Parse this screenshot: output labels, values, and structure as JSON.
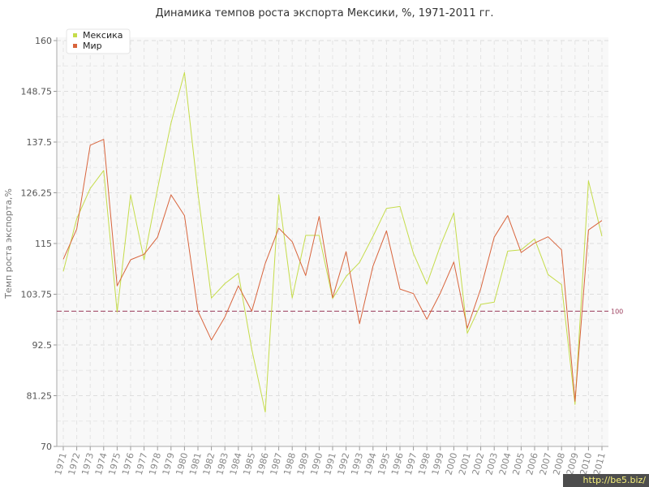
{
  "chart_data": {
    "type": "line",
    "title": "Динамика темпов роста экспорта Мексики, %, 1971-2011 гг.",
    "ylabel": "Темп роста экспорта,%",
    "xlabel": "",
    "ylim": [
      70,
      160
    ],
    "yticks": [
      "70",
      "81.25",
      "92.5",
      "103.75",
      "115",
      "126.25",
      "137.5",
      "148.75",
      "160"
    ],
    "categories": [
      "1971",
      "1972",
      "1973",
      "1974",
      "1975",
      "1976",
      "1977",
      "1978",
      "1979",
      "1980",
      "1981",
      "1982",
      "1983",
      "1984",
      "1985",
      "1986",
      "1987",
      "1988",
      "1989",
      "1990",
      "1991",
      "1992",
      "1993",
      "1994",
      "1995",
      "1996",
      "1997",
      "1998",
      "1999",
      "2000",
      "2001",
      "2002",
      "2003",
      "2004",
      "2005",
      "2006",
      "2007",
      "2008",
      "2009",
      "2010",
      "2011"
    ],
    "series": [
      {
        "name": "Мексика",
        "color": "#c5dc4a",
        "values": [
          108.8,
          120.5,
          127.2,
          131.2,
          99.8,
          125.8,
          111.4,
          127.1,
          141.7,
          152.9,
          126.2,
          102.9,
          106.1,
          108.4,
          91.5,
          77.6,
          125.8,
          102.9,
          116.8,
          116.8,
          102.8,
          107.7,
          110.8,
          116.6,
          122.8,
          123.2,
          112.8,
          106.0,
          114.5,
          121.8,
          95.1,
          101.5,
          102.0,
          113.3,
          113.6,
          116.0,
          108.1,
          105.9,
          79.3,
          128.9,
          116.6
        ],
        "stroke_width": 1
      },
      {
        "name": "Мир",
        "color": "#d8643c",
        "values": [
          111.5,
          118.2,
          136.8,
          138.1,
          105.6,
          111.4,
          112.6,
          116.4,
          125.8,
          121.2,
          100.0,
          93.6,
          98.7,
          105.6,
          100.0,
          110.6,
          118.4,
          115.4,
          107.9,
          121.0,
          103.0,
          113.2,
          97.2,
          110.0,
          117.8,
          104.9,
          103.9,
          98.2,
          104.0,
          110.9,
          96.2,
          105.0,
          116.4,
          121.2,
          113.0,
          115.1,
          116.5,
          113.6,
          80.0,
          118.0,
          120.1
        ],
        "stroke_width": 1
      }
    ],
    "reference_line": {
      "value": 100,
      "label": "100",
      "color": "#9a3b5a"
    },
    "legend_position": "top-left",
    "grid": true
  },
  "watermark": "http://be5.biz/"
}
